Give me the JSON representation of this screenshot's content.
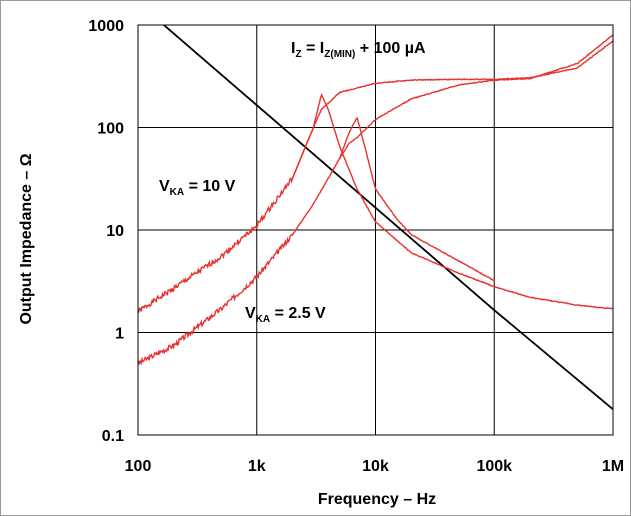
{
  "chart_data": {
    "type": "line",
    "title": "",
    "xlabel": "Frequency – Hz",
    "ylabel": "Output Impedance – Ω",
    "x_scale": "log",
    "y_scale": "log",
    "xlim": [
      100,
      1000000
    ],
    "ylim": [
      0.1,
      1000
    ],
    "grid": true,
    "x_ticks": [
      {
        "value": 100,
        "label": "100"
      },
      {
        "value": 1000,
        "label": "1k"
      },
      {
        "value": 10000,
        "label": "10k"
      },
      {
        "value": 100000,
        "label": "100k"
      },
      {
        "value": 1000000,
        "label": "1M"
      }
    ],
    "y_ticks": [
      {
        "value": 0.1,
        "label": "0.1"
      },
      {
        "value": 1,
        "label": "1"
      },
      {
        "value": 10,
        "label": "10"
      },
      {
        "value": 100,
        "label": "100"
      },
      {
        "value": 1000,
        "label": "1000"
      }
    ],
    "annotations": [
      {
        "id": "iz",
        "base": "I",
        "sub": "Z",
        "mid": " = I",
        "sub2": "Z(MIN)",
        "tail": " + 100 µA"
      },
      {
        "id": "vka10",
        "base": "V",
        "sub": "KA",
        "tail": " = 10 V"
      },
      {
        "id": "vka25",
        "base": "V",
        "sub": "KA",
        "tail": " = 2.5 V"
      }
    ],
    "colors": {
      "reference": "#000000",
      "measured": "#e8312f",
      "grid": "#000000"
    },
    "series": [
      {
        "color": "#000000",
        "x": [
          100,
          1000,
          10000,
          100000,
          1000000
        ],
        "y": [
          1650,
          165,
          16.5,
          1.65,
          0.178
        ]
      },
      {
        "color": "#e8312f",
        "x": [
          100,
          200,
          500,
          1000,
          2000,
          3000,
          3500,
          4000,
          5000,
          7000,
          10000,
          20000,
          50000,
          100000,
          200000,
          500000,
          1000000
        ],
        "y": [
          1.6,
          2.7,
          5.5,
          11,
          32,
          100,
          210,
          150,
          65,
          25,
          12,
          6,
          3.8,
          2.8,
          2.2,
          1.85,
          1.7
        ]
      },
      {
        "color": "#e8312f",
        "x": [
          2000,
          3000,
          3500,
          5000,
          10000,
          20000,
          50000,
          100000,
          200000,
          500000,
          1000000
        ],
        "y": [
          32,
          100,
          150,
          220,
          270,
          290,
          295,
          295,
          305,
          380,
          700
        ]
      },
      {
        "color": "#e8312f",
        "x": [
          100,
          200,
          500,
          1000,
          2000,
          3000,
          5000,
          6000,
          7000,
          8000,
          10000,
          15000,
          20000,
          50000,
          100000
        ],
        "y": [
          0.5,
          0.75,
          1.7,
          3.5,
          9,
          18,
          50,
          90,
          125,
          70,
          25,
          13,
          9,
          5,
          3.2
        ]
      },
      {
        "color": "#e8312f",
        "x": [
          5000,
          6000,
          7000,
          10000,
          20000,
          50000,
          100000,
          200000,
          500000,
          1000000
        ],
        "y": [
          50,
          70,
          80,
          120,
          190,
          260,
          290,
          300,
          420,
          800
        ]
      }
    ]
  }
}
